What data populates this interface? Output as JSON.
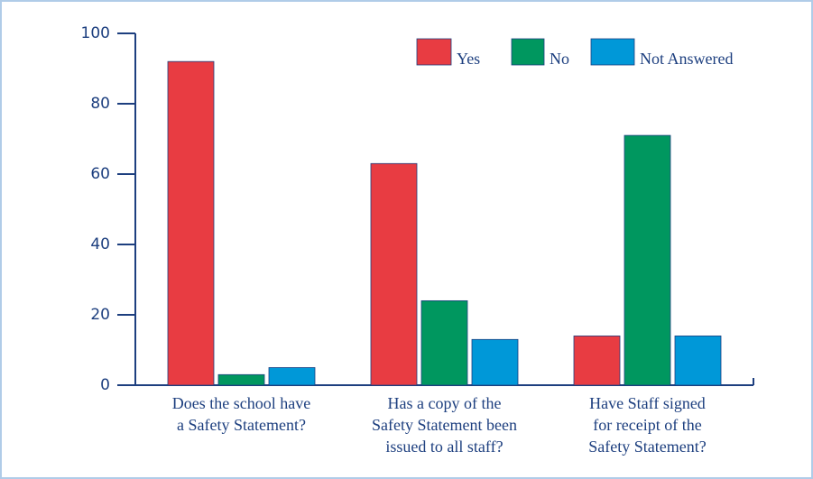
{
  "chart_data": {
    "type": "bar",
    "categories": [
      [
        "Does the school have",
        "a Safety Statement?"
      ],
      [
        "Has a copy of the",
        "Safety Statement been",
        "issued to all staff?"
      ],
      [
        "Have Staff signed",
        "for receipt of the",
        "Safety Statement?"
      ]
    ],
    "series": [
      {
        "name": "Yes",
        "color": "#e83c42",
        "values": [
          92,
          63,
          14
        ]
      },
      {
        "name": "No",
        "color": "#00975f",
        "values": [
          3,
          24,
          71
        ]
      },
      {
        "name": "Not Answered",
        "color": "#0098d8",
        "values": [
          5,
          13,
          14
        ]
      }
    ],
    "ylim": [
      0,
      100
    ],
    "yticks": [
      0,
      20,
      40,
      60,
      80,
      100
    ],
    "legend": "top-right"
  }
}
